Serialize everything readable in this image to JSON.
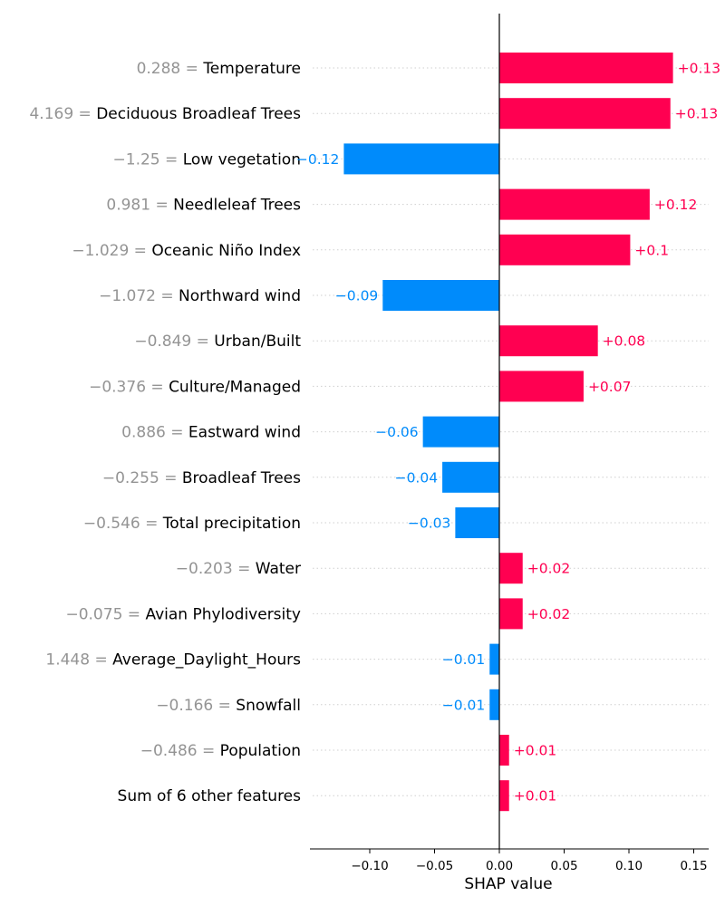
{
  "chart_data": {
    "type": "bar",
    "orientation": "horizontal",
    "xlabel": "SHAP value",
    "xlim": [
      -0.147,
      0.157
    ],
    "xticks": [
      {
        "value": -0.1,
        "label": "−0.10"
      },
      {
        "value": -0.05,
        "label": "−0.05"
      },
      {
        "value": 0.0,
        "label": "0.00"
      },
      {
        "value": 0.05,
        "label": "0.05"
      },
      {
        "value": 0.1,
        "label": "0.10"
      },
      {
        "value": 0.15,
        "label": "0.15"
      }
    ],
    "colors": {
      "positive": "#ff0051",
      "negative": "#008bfb"
    },
    "rows": [
      {
        "feature": "Temperature",
        "feature_value": "0.288",
        "shap": 0.134,
        "label": "+0.13"
      },
      {
        "feature": "Deciduous Broadleaf Trees",
        "feature_value": "4.169",
        "shap": 0.132,
        "label": "+0.13"
      },
      {
        "feature": "Low vegetation",
        "feature_value": "−1.25",
        "shap": -0.12,
        "label": "−0.12"
      },
      {
        "feature": "Needleleaf Trees",
        "feature_value": "0.981",
        "shap": 0.116,
        "label": "+0.12"
      },
      {
        "feature": "Oceanic Niño Index",
        "feature_value": "−1.029",
        "shap": 0.101,
        "label": "+0.1"
      },
      {
        "feature": "Northward wind",
        "feature_value": "−1.072",
        "shap": -0.09,
        "label": "−0.09"
      },
      {
        "feature": "Urban/Built",
        "feature_value": "−0.849",
        "shap": 0.076,
        "label": "+0.08"
      },
      {
        "feature": "Culture/Managed",
        "feature_value": "−0.376",
        "shap": 0.065,
        "label": "+0.07"
      },
      {
        "feature": "Eastward wind",
        "feature_value": "0.886",
        "shap": -0.059,
        "label": "−0.06"
      },
      {
        "feature": "Broadleaf Trees",
        "feature_value": "−0.255",
        "shap": -0.044,
        "label": "−0.04"
      },
      {
        "feature": "Total precipitation",
        "feature_value": "−0.546",
        "shap": -0.034,
        "label": "−0.03"
      },
      {
        "feature": "Water",
        "feature_value": "−0.203",
        "shap": 0.018,
        "label": "+0.02"
      },
      {
        "feature": "Avian Phylodiversity",
        "feature_value": "−0.075",
        "shap": 0.018,
        "label": "+0.02"
      },
      {
        "feature": "Average_Daylight_Hours",
        "feature_value": "1.448",
        "shap": -0.0075,
        "label": "−0.01"
      },
      {
        "feature": "Snowfall",
        "feature_value": "−0.166",
        "shap": -0.0075,
        "label": "−0.01"
      },
      {
        "feature": "Population",
        "feature_value": "−0.486",
        "shap": 0.0075,
        "label": "+0.01"
      },
      {
        "feature": "Sum of 6 other features",
        "feature_value": "",
        "shap": 0.0075,
        "label": "+0.01"
      }
    ]
  }
}
